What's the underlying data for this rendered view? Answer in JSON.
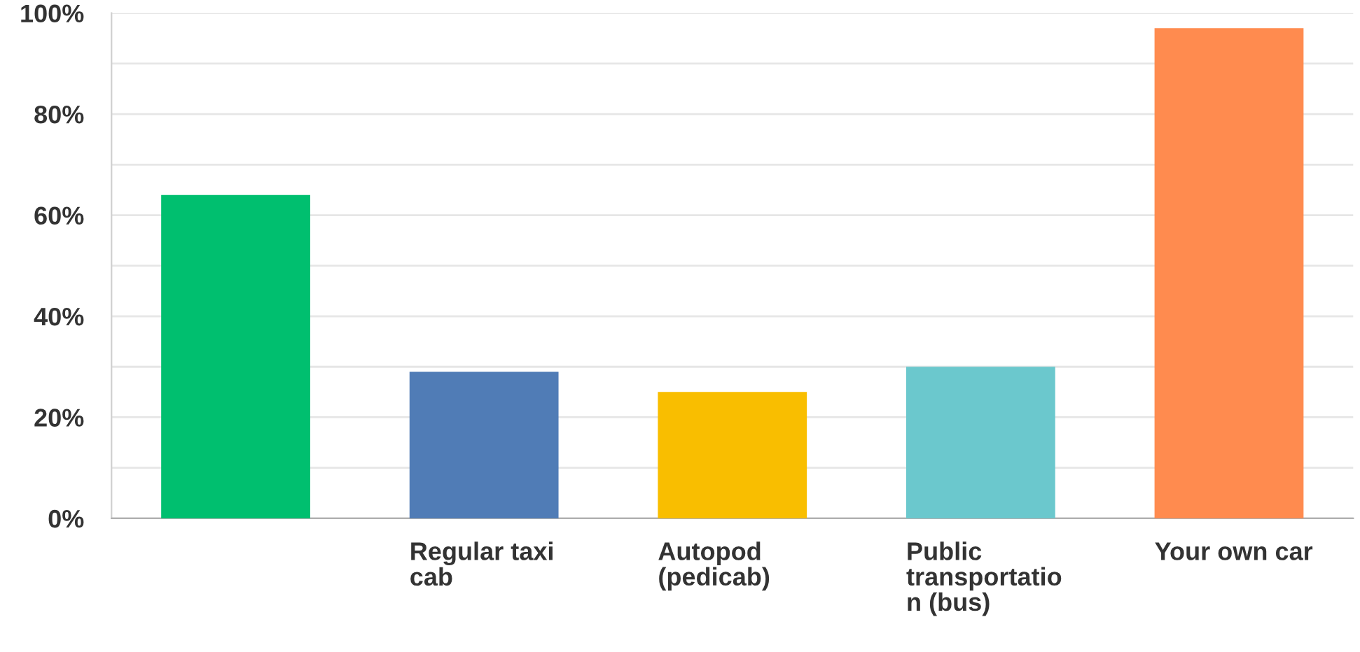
{
  "chart_data": {
    "type": "bar",
    "categories": [
      null,
      "Regular taxi\ncab",
      "Autopod\n(pedicab)",
      "Public\ntransportatio\nn (bus)",
      "Your own car"
    ],
    "values": [
      64,
      29,
      25,
      30,
      97
    ],
    "colors": [
      "#00bf6f",
      "#507cb6",
      "#f9be00",
      "#6bc8cd",
      "#ff8b4f"
    ],
    "ylim": [
      0,
      100
    ],
    "yticks": [
      {
        "value": 0,
        "label": "0%"
      },
      {
        "value": 10,
        "label": null
      },
      {
        "value": 20,
        "label": "20%"
      },
      {
        "value": 30,
        "label": null
      },
      {
        "value": 40,
        "label": "40%"
      },
      {
        "value": 50,
        "label": null
      },
      {
        "value": 60,
        "label": "60%"
      },
      {
        "value": 70,
        "label": null
      },
      {
        "value": 80,
        "label": "80%"
      },
      {
        "value": 90,
        "label": null
      },
      {
        "value": 100,
        "label": "100%"
      }
    ],
    "grid": "y"
  }
}
